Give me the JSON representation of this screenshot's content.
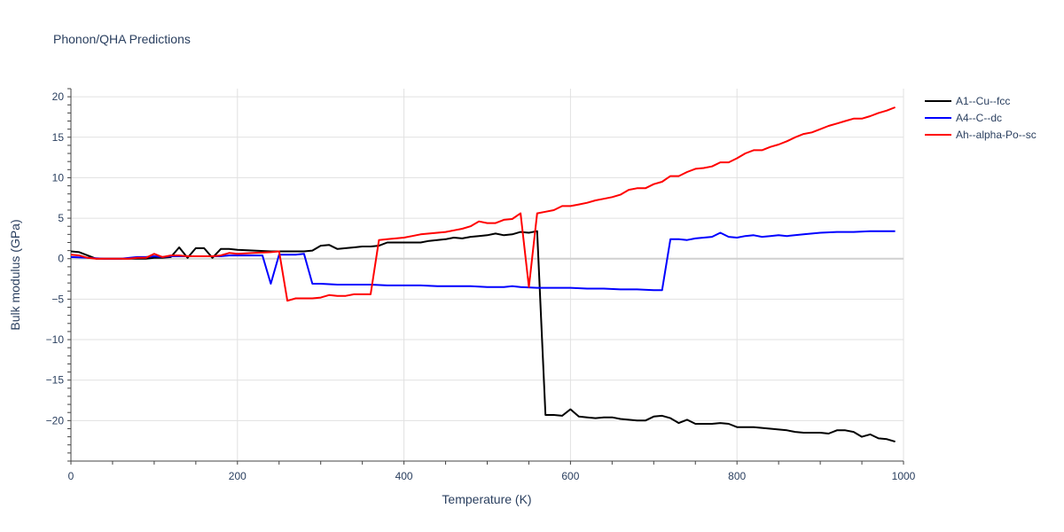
{
  "title": "Phonon/QHA Predictions",
  "chart_data": {
    "type": "line",
    "title": "Phonon/QHA Predictions",
    "xlabel": "Temperature (K)",
    "ylabel": "Bulk modulus (GPa)",
    "xlim": [
      0,
      1000
    ],
    "ylim": [
      -25,
      21
    ],
    "xticks": [
      0,
      200,
      400,
      600,
      800,
      1000
    ],
    "yticks": [
      -20,
      -15,
      -10,
      -5,
      0,
      5,
      10,
      15,
      20
    ],
    "grid": true,
    "legend_position": "right",
    "series": [
      {
        "name": "A1--Cu--fcc",
        "color": "#000000",
        "x": [
          0,
          10,
          20,
          30,
          40,
          50,
          60,
          70,
          80,
          90,
          100,
          110,
          120,
          130,
          140,
          150,
          160,
          170,
          180,
          190,
          200,
          220,
          240,
          260,
          280,
          290,
          300,
          310,
          320,
          330,
          340,
          350,
          360,
          370,
          380,
          390,
          400,
          410,
          420,
          430,
          440,
          450,
          460,
          470,
          480,
          490,
          500,
          510,
          520,
          530,
          540,
          550,
          560,
          570,
          580,
          590,
          600,
          610,
          620,
          630,
          640,
          650,
          660,
          670,
          680,
          690,
          700,
          710,
          720,
          730,
          740,
          750,
          760,
          770,
          780,
          790,
          800,
          810,
          820,
          830,
          840,
          850,
          860,
          870,
          880,
          890,
          900,
          910,
          920,
          930,
          940,
          950,
          960,
          970,
          980,
          990
        ],
        "values": [
          0.9,
          0.8,
          0.4,
          0.0,
          0.0,
          0.0,
          0.0,
          0.0,
          0.0,
          0.0,
          0.1,
          0.1,
          0.2,
          1.4,
          0.1,
          1.3,
          1.3,
          0.1,
          1.2,
          1.2,
          1.1,
          1.0,
          0.9,
          0.9,
          0.9,
          1.0,
          1.6,
          1.7,
          1.2,
          1.3,
          1.4,
          1.5,
          1.5,
          1.6,
          2.0,
          2.0,
          2.0,
          2.0,
          2.0,
          2.2,
          2.3,
          2.4,
          2.6,
          2.5,
          2.7,
          2.8,
          2.9,
          3.1,
          2.9,
          3.0,
          3.3,
          3.2,
          3.4,
          -19.3,
          -19.3,
          -19.4,
          -18.6,
          -19.5,
          -19.6,
          -19.7,
          -19.6,
          -19.6,
          -19.8,
          -19.9,
          -20.0,
          -20.0,
          -19.5,
          -19.4,
          -19.7,
          -20.3,
          -19.9,
          -20.4,
          -20.4,
          -20.4,
          -20.3,
          -20.4,
          -20.8,
          -20.8,
          -20.8,
          -20.9,
          -21.0,
          -21.1,
          -21.2,
          -21.4,
          -21.5,
          -21.5,
          -21.5,
          -21.6,
          -21.2,
          -21.2,
          -21.4,
          -22.0,
          -21.7,
          -22.2,
          -22.3,
          -22.6
        ]
      },
      {
        "name": "A4--C--dc",
        "color": "#0000ff",
        "x": [
          0,
          20,
          40,
          60,
          80,
          90,
          100,
          110,
          120,
          140,
          160,
          180,
          190,
          200,
          220,
          230,
          240,
          250,
          260,
          270,
          280,
          290,
          300,
          320,
          340,
          360,
          380,
          400,
          420,
          440,
          460,
          480,
          500,
          520,
          530,
          540,
          560,
          580,
          600,
          620,
          640,
          660,
          680,
          700,
          710,
          720,
          730,
          740,
          750,
          760,
          770,
          780,
          790,
          800,
          810,
          820,
          830,
          840,
          850,
          860,
          880,
          900,
          920,
          940,
          960,
          980,
          990
        ],
        "values": [
          0.2,
          0.1,
          0.0,
          0.0,
          0.2,
          0.2,
          0.3,
          0.2,
          0.3,
          0.3,
          0.3,
          0.3,
          0.4,
          0.4,
          0.4,
          0.4,
          -3.1,
          0.5,
          0.5,
          0.5,
          0.6,
          -3.1,
          -3.1,
          -3.2,
          -3.2,
          -3.2,
          -3.3,
          -3.3,
          -3.3,
          -3.4,
          -3.4,
          -3.4,
          -3.5,
          -3.5,
          -3.4,
          -3.5,
          -3.6,
          -3.6,
          -3.6,
          -3.7,
          -3.7,
          -3.8,
          -3.8,
          -3.9,
          -3.9,
          2.4,
          2.4,
          2.3,
          2.5,
          2.6,
          2.7,
          3.2,
          2.7,
          2.6,
          2.8,
          2.9,
          2.7,
          2.8,
          2.9,
          2.8,
          3.0,
          3.2,
          3.3,
          3.3,
          3.4,
          3.4,
          3.4
        ]
      },
      {
        "name": "Ah--alpha-Po--sc",
        "color": "#ff0000",
        "x": [
          0,
          10,
          20,
          30,
          40,
          50,
          60,
          70,
          80,
          90,
          100,
          110,
          120,
          130,
          140,
          150,
          160,
          170,
          180,
          190,
          200,
          220,
          240,
          250,
          260,
          270,
          280,
          290,
          300,
          310,
          320,
          330,
          340,
          350,
          360,
          370,
          380,
          390,
          400,
          410,
          420,
          430,
          440,
          450,
          460,
          470,
          480,
          490,
          500,
          510,
          520,
          530,
          540,
          550,
          560,
          570,
          580,
          590,
          600,
          610,
          620,
          630,
          640,
          650,
          660,
          670,
          680,
          690,
          700,
          710,
          720,
          730,
          740,
          750,
          760,
          770,
          780,
          790,
          800,
          810,
          820,
          830,
          840,
          850,
          860,
          870,
          880,
          890,
          900,
          910,
          920,
          930,
          940,
          950,
          960,
          970,
          980,
          990
        ],
        "values": [
          0.5,
          0.4,
          0.1,
          0.0,
          0.0,
          0.0,
          0.0,
          0.0,
          0.1,
          0.1,
          0.6,
          0.2,
          0.4,
          0.4,
          0.3,
          0.3,
          0.3,
          0.3,
          0.4,
          0.7,
          0.6,
          0.7,
          0.8,
          0.9,
          -5.2,
          -4.9,
          -4.9,
          -4.9,
          -4.8,
          -4.5,
          -4.6,
          -4.6,
          -4.4,
          -4.4,
          -4.4,
          2.3,
          2.4,
          2.5,
          2.6,
          2.8,
          3.0,
          3.1,
          3.2,
          3.3,
          3.5,
          3.7,
          4.0,
          4.6,
          4.4,
          4.4,
          4.8,
          4.9,
          5.6,
          -3.5,
          5.6,
          5.8,
          6.0,
          6.5,
          6.5,
          6.7,
          6.9,
          7.2,
          7.4,
          7.6,
          7.9,
          8.5,
          8.7,
          8.7,
          9.2,
          9.5,
          10.2,
          10.2,
          10.7,
          11.1,
          11.2,
          11.4,
          11.9,
          11.9,
          12.4,
          13.0,
          13.4,
          13.4,
          13.8,
          14.1,
          14.5,
          15.0,
          15.4,
          15.6,
          16.0,
          16.4,
          16.7,
          17.0,
          17.3,
          17.3,
          17.6,
          18.0,
          18.3,
          18.7
        ]
      }
    ]
  }
}
